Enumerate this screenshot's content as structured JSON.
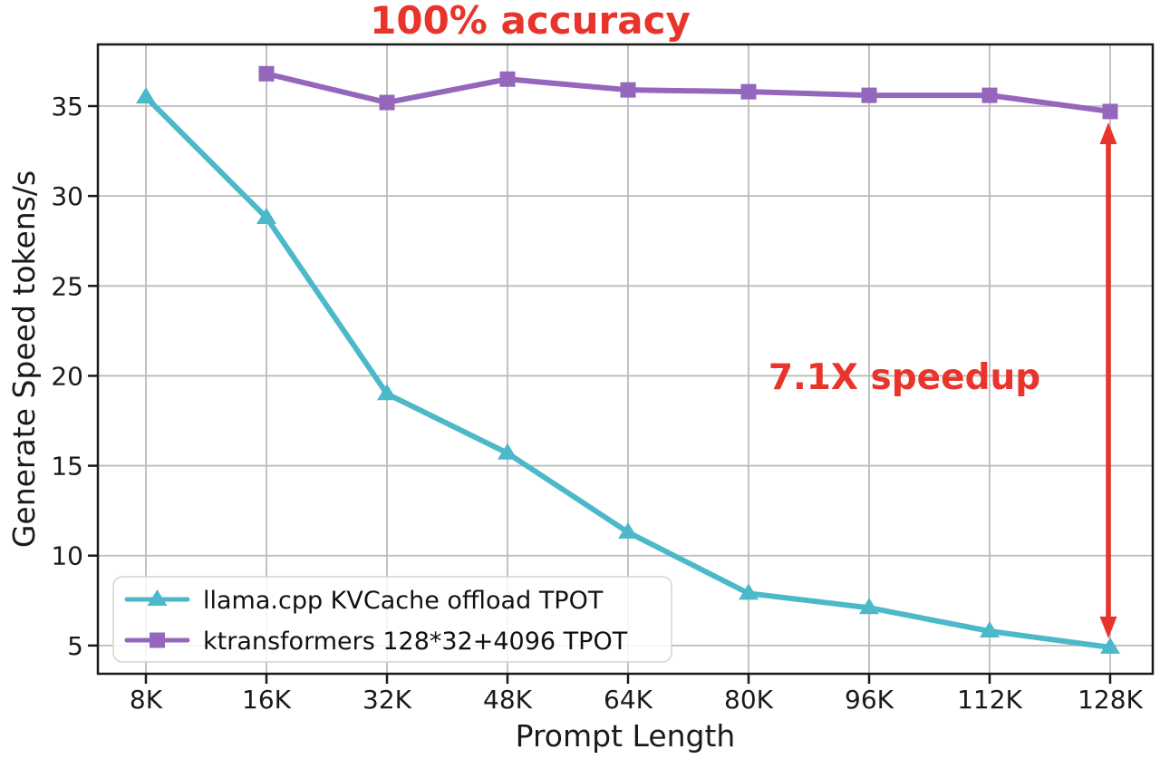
{
  "chart_data": {
    "type": "line",
    "title": "100% accuracy",
    "xlabel": "Prompt Length",
    "ylabel": "Generate Speed tokens/s",
    "categories": [
      "8K",
      "16K",
      "32K",
      "48K",
      "64K",
      "80K",
      "96K",
      "112K",
      "128K"
    ],
    "yticks": [
      5,
      10,
      15,
      20,
      25,
      30,
      35
    ],
    "ylim": [
      3.4,
      38.5
    ],
    "grid": true,
    "legend_position": "lower-left",
    "series": [
      {
        "name": "llama.cpp KVCache offload TPOT",
        "color": "#4bb9c9",
        "marker": "triangle",
        "values": [
          35.5,
          28.8,
          19.0,
          15.7,
          11.3,
          7.9,
          7.1,
          5.8,
          4.9
        ]
      },
      {
        "name": "ktransformers 128*32+4096 TPOT",
        "color": "#9467bd",
        "marker": "square",
        "values": [
          null,
          36.8,
          35.2,
          36.5,
          35.9,
          35.8,
          35.6,
          35.6,
          34.7
        ]
      }
    ],
    "annotations": {
      "accuracy_label": "100% accuracy",
      "speedup_label": "7.1X speedup",
      "annotation_color": "#e8342b",
      "arrow": {
        "category": "128K",
        "from_value": 34.7,
        "to_value": 4.9
      }
    },
    "style": {
      "grid_color": "#bbbbbb",
      "spine_color": "#1a1a1a",
      "legend_border_color": "#d4d4d4"
    }
  }
}
